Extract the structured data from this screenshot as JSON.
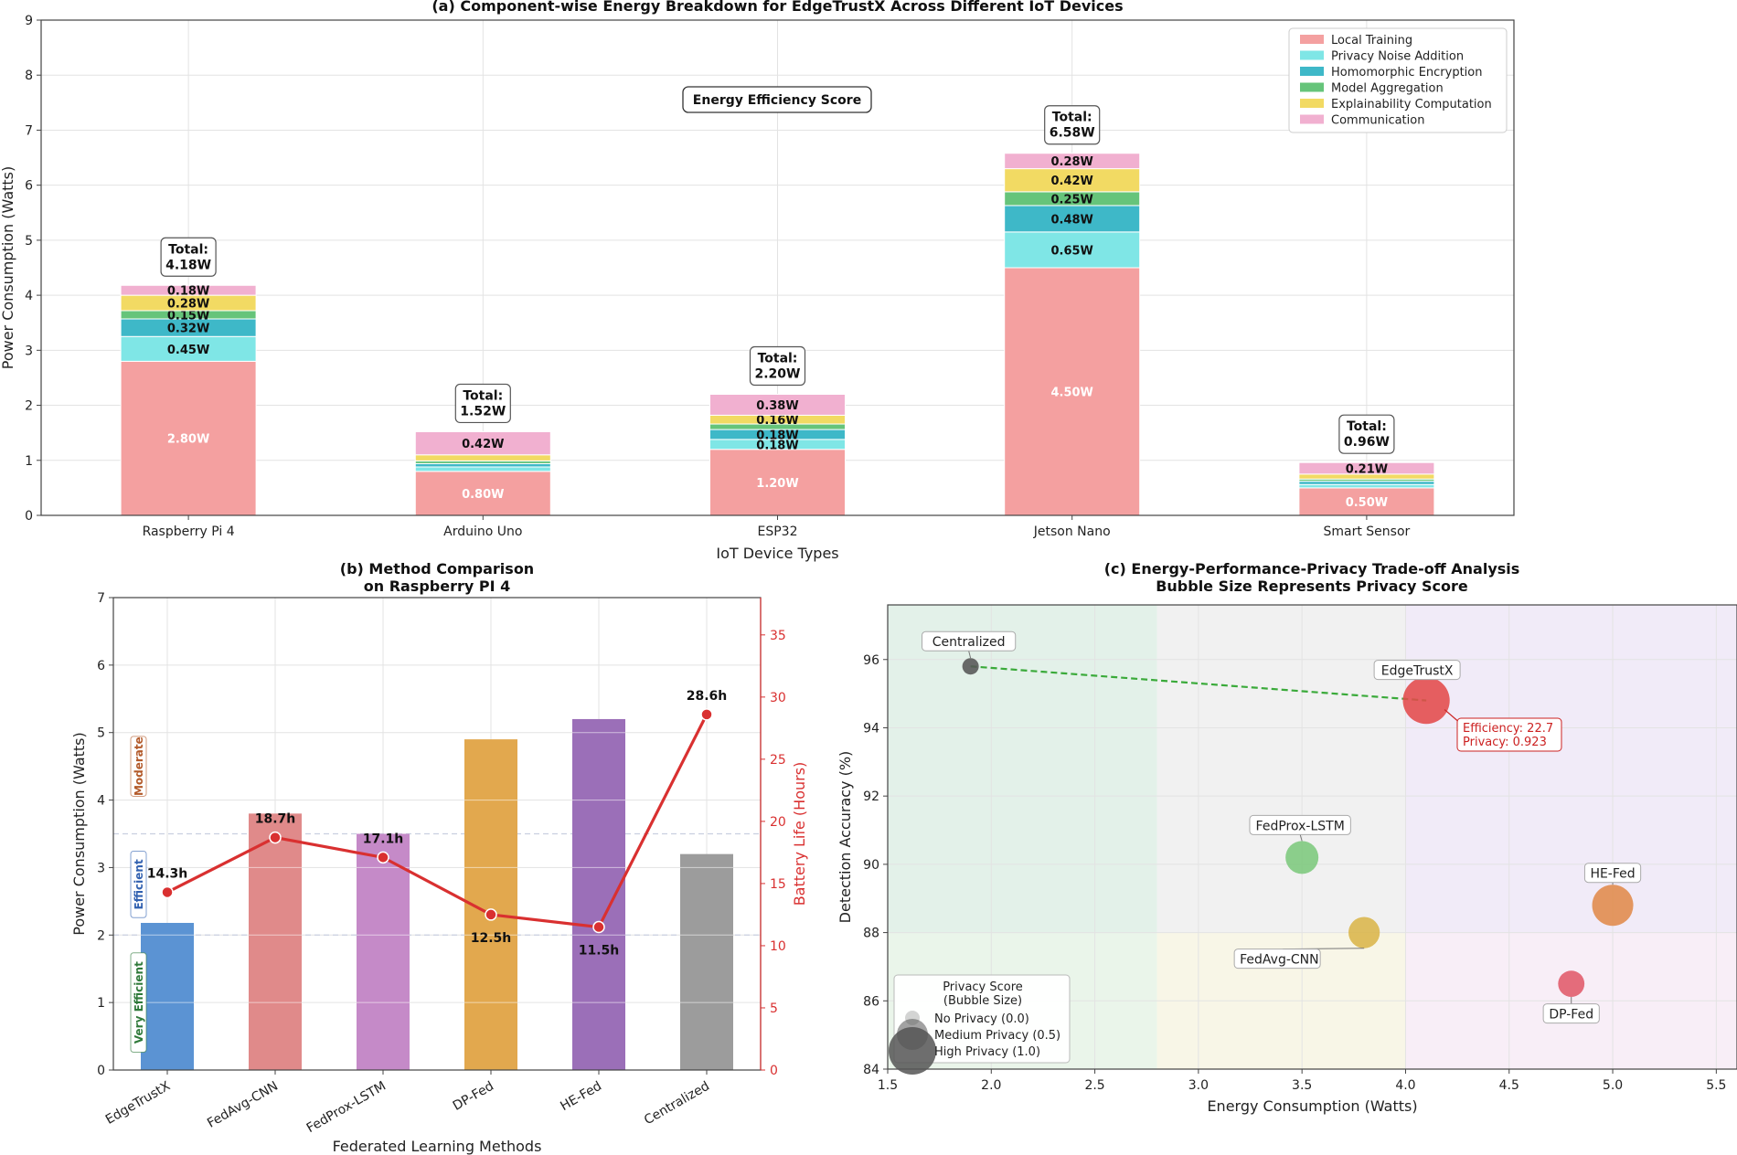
{
  "chart_data": [
    {
      "type": "bar",
      "stacked": true,
      "title": "(a) Component-wise Energy Breakdown for EdgeTrustX Across Different IoT Devices",
      "xlabel": "IoT Device Types",
      "ylabel": "Power Consumption (Watts)",
      "ylim": [
        0,
        9
      ],
      "yticks": [
        0,
        1,
        2,
        3,
        4,
        5,
        6,
        7,
        8,
        9
      ],
      "grid": true,
      "legend_position": "top-right",
      "annotation": "Energy Efficiency Score",
      "categories": [
        "Raspberry Pi 4",
        "Arduino Uno",
        "ESP32",
        "Jetson Nano",
        "Smart Sensor"
      ],
      "series": [
        {
          "name": "Local Training",
          "color": "#f4a0a0",
          "values": [
            2.8,
            0.8,
            1.2,
            4.5,
            0.5
          ],
          "labels": [
            "2.80W",
            "0.80W",
            "1.20W",
            "4.50W",
            "0.50W"
          ],
          "label_color": "#ffffff"
        },
        {
          "name": "Privacy Noise Addition",
          "color": "#7fe6e6",
          "values": [
            0.45,
            0.08,
            0.18,
            0.65,
            0.06
          ],
          "labels": [
            "0.45W",
            "",
            "0.18W",
            "0.65W",
            ""
          ],
          "label_color": "#111111"
        },
        {
          "name": "Homomorphic Encryption",
          "color": "#3eb8c8",
          "values": [
            0.32,
            0.06,
            0.18,
            0.48,
            0.06
          ],
          "labels": [
            "0.32W",
            "",
            "0.18W",
            "0.48W",
            ""
          ],
          "label_color": "#111111"
        },
        {
          "name": "Model Aggregation",
          "color": "#66c47a",
          "values": [
            0.15,
            0.05,
            0.1,
            0.25,
            0.04
          ],
          "labels": [
            "0.15W",
            "",
            "",
            "0.25W",
            ""
          ],
          "label_color": "#111111"
        },
        {
          "name": "Explainability Computation",
          "color": "#f2da63",
          "values": [
            0.28,
            0.11,
            0.16,
            0.42,
            0.09
          ],
          "labels": [
            "0.28W",
            "",
            "0.16W",
            "0.42W",
            ""
          ],
          "label_color": "#111111"
        },
        {
          "name": "Communication",
          "color": "#f1b0d0",
          "values": [
            0.18,
            0.42,
            0.38,
            0.28,
            0.21
          ],
          "labels": [
            "0.18W",
            "0.42W",
            "0.38W",
            "0.28W",
            "0.21W"
          ],
          "label_color": "#111111"
        }
      ],
      "totals": [
        "Total:\n4.18W",
        "Total:\n1.52W",
        "Total:\n2.20W",
        "Total:\n6.58W",
        "Total:\n0.96W"
      ],
      "total_values": [
        4.18,
        1.52,
        2.2,
        6.58,
        0.96
      ]
    },
    {
      "type": "bar",
      "title": "(b) Method Comparison\non Raspberry PI 4",
      "xlabel": "Federated Learning Methods",
      "ylabel": "Power Consumption (Watts)",
      "y2label": "Battery Life (Hours)",
      "ylim": [
        0,
        7
      ],
      "yticks": [
        0,
        1,
        2,
        3,
        4,
        5,
        6,
        7
      ],
      "y2lim": [
        0,
        38
      ],
      "y2ticks": [
        0,
        5,
        10,
        15,
        20,
        25,
        30,
        35
      ],
      "categories": [
        "EdgeTrustX",
        "FedAvg-CNN",
        "FedProx-LSTM",
        "DP-Fed",
        "HE-Fed",
        "Centralized"
      ],
      "values": [
        2.18,
        3.8,
        3.5,
        4.9,
        5.2,
        3.2
      ],
      "colors": [
        "#5b93d3",
        "#e08a8a",
        "#c58ac8",
        "#e2a84e",
        "#9b6fb8",
        "#9c9c9c"
      ],
      "line": {
        "name": "Battery Life",
        "color": "#d93030",
        "values": [
          14.3,
          18.7,
          17.1,
          12.5,
          11.5,
          28.6
        ],
        "labels": [
          "14.3h",
          "18.7h",
          "17.1h",
          "12.5h",
          "11.5h",
          "28.6h"
        ]
      },
      "bands": [
        {
          "label": "Very Efficient",
          "range": [
            0,
            2
          ],
          "color": "#2f7a3a"
        },
        {
          "label": "Efficient",
          "range": [
            2,
            3.5
          ],
          "color": "#3060b0"
        },
        {
          "label": "Moderate",
          "range": [
            3.5,
            5.5
          ],
          "color": "#b35a2a"
        }
      ],
      "reference_lines": [
        2,
        3.5
      ]
    },
    {
      "type": "scatter",
      "title": "(c) Energy-Performance-Privacy Trade-off Analysis\nBubble Size Represents Privacy Score",
      "xlabel": "Energy Consumption (Watts)",
      "ylabel": "Detection Accuracy (%)",
      "xlim": [
        1.5,
        5.6
      ],
      "ylim": [
        84,
        97.6
      ],
      "xticks": [
        1.5,
        2.0,
        2.5,
        3.0,
        3.5,
        4.0,
        4.5,
        5.0,
        5.5
      ],
      "yticks": [
        84,
        86,
        88,
        90,
        92,
        94,
        96
      ],
      "regions": [
        {
          "x": [
            1.5,
            2.8
          ],
          "y": [
            88,
            97.6
          ],
          "color": "#d9ece2"
        },
        {
          "x": [
            1.5,
            2.8
          ],
          "y": [
            84,
            88
          ],
          "color": "#e3f2e3"
        },
        {
          "x": [
            2.8,
            4.0
          ],
          "y": [
            88,
            97.6
          ],
          "color": "#ececec"
        },
        {
          "x": [
            2.8,
            4.0
          ],
          "y": [
            84,
            88
          ],
          "color": "#f6f3df"
        },
        {
          "x": [
            4.0,
            5.6
          ],
          "y": [
            88,
            97.6
          ],
          "color": "#ece4f6"
        },
        {
          "x": [
            4.0,
            5.6
          ],
          "y": [
            84,
            88
          ],
          "color": "#f5e8f4"
        }
      ],
      "points": [
        {
          "name": "Centralized",
          "x": 1.9,
          "y": 95.8,
          "privacy": 0.0,
          "color": "#555555"
        },
        {
          "name": "EdgeTrustX",
          "x": 4.1,
          "y": 94.8,
          "privacy": 0.923,
          "color": "#e24a4a"
        },
        {
          "name": "FedProx-LSTM",
          "x": 3.5,
          "y": 90.2,
          "privacy": 0.5,
          "color": "#7cc87c"
        },
        {
          "name": "FedAvg-CNN",
          "x": 3.8,
          "y": 88.0,
          "privacy": 0.45,
          "color": "#d9b54a"
        },
        {
          "name": "HE-Fed",
          "x": 5.0,
          "y": 88.8,
          "privacy": 0.75,
          "color": "#e08a4a"
        },
        {
          "name": "DP-Fed",
          "x": 4.8,
          "y": 86.5,
          "privacy": 0.3,
          "color": "#e05a6a"
        }
      ],
      "trend_line": {
        "from": "Centralized",
        "to": "EdgeTrustX",
        "color": "#3aaa3a"
      },
      "annotation": "Efficiency: 22.7\nPrivacy: 0.923",
      "legend": {
        "title": "Privacy Score\n(Bubble Size)",
        "entries": [
          "No Privacy (0.0)",
          "Medium Privacy (0.5)",
          "High Privacy (1.0)"
        ],
        "position": "lower-left"
      }
    }
  ]
}
